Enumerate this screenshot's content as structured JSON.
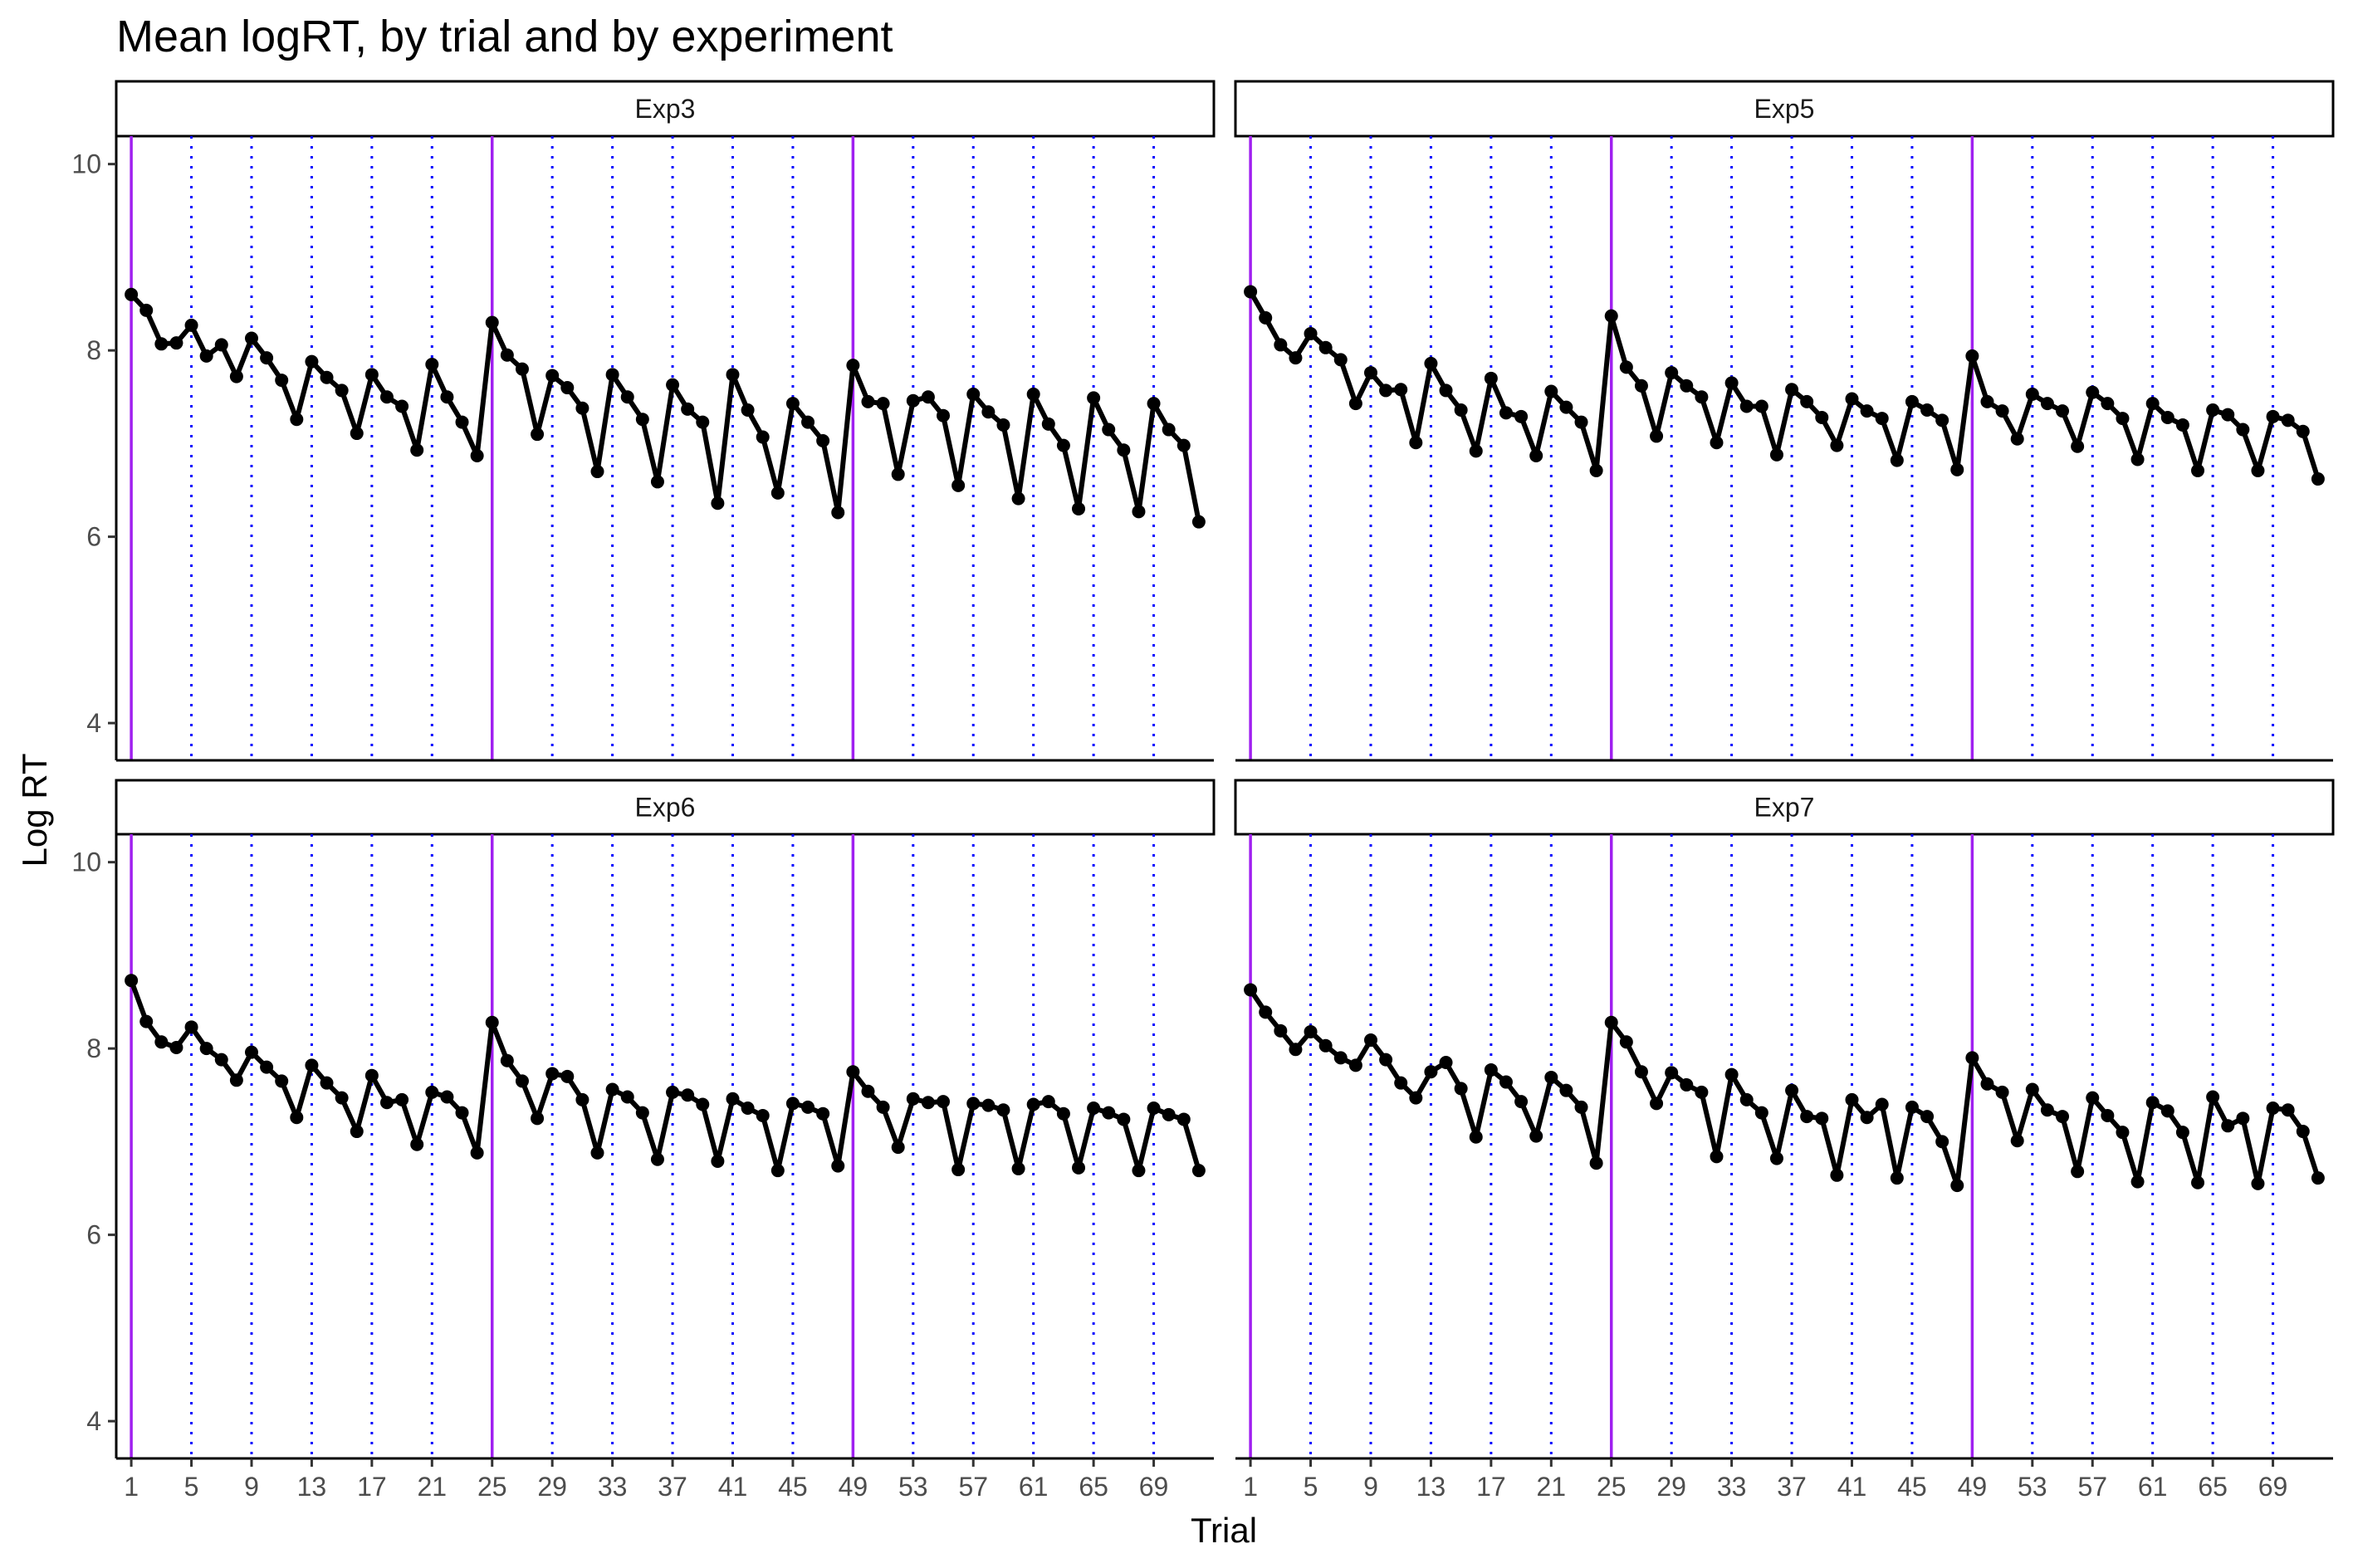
{
  "chart_data": {
    "type": "line",
    "title": "Mean logRT, by trial and by experiment",
    "xlabel": "Trial",
    "ylabel": "Log RT",
    "xlim": [
      0,
      73
    ],
    "ylim": [
      3.6,
      10.3
    ],
    "x_ticks": [
      1,
      5,
      9,
      13,
      17,
      21,
      25,
      29,
      33,
      37,
      41,
      45,
      49,
      53,
      57,
      61,
      65,
      69
    ],
    "y_ticks": [
      4,
      6,
      8,
      10
    ],
    "vlines_solid": [
      1,
      25,
      49
    ],
    "vlines_dotted": [
      5,
      9,
      13,
      17,
      21,
      29,
      33,
      37,
      41,
      45,
      53,
      57,
      61,
      65,
      69
    ],
    "colors": {
      "line": "#000000",
      "solid_vline": "#a020f0",
      "dotted_vline": "#0000ff",
      "axis": "#000000",
      "tick_text": "#4d4d4d"
    },
    "grid": false,
    "legend": "none",
    "x": [
      1,
      2,
      3,
      4,
      5,
      6,
      7,
      8,
      9,
      10,
      11,
      12,
      13,
      14,
      15,
      16,
      17,
      18,
      19,
      20,
      21,
      22,
      23,
      24,
      25,
      26,
      27,
      28,
      29,
      30,
      31,
      32,
      33,
      34,
      35,
      36,
      37,
      38,
      39,
      40,
      41,
      42,
      43,
      44,
      45,
      46,
      47,
      48,
      49,
      50,
      51,
      52,
      53,
      54,
      55,
      56,
      57,
      58,
      59,
      60,
      61,
      62,
      63,
      64,
      65,
      66,
      67,
      68,
      69,
      70,
      71,
      72
    ],
    "panels": [
      {
        "name": "Exp3",
        "values": [
          8.6,
          8.43,
          8.07,
          8.08,
          8.27,
          7.94,
          8.06,
          7.72,
          8.13,
          7.92,
          7.68,
          7.26,
          7.88,
          7.71,
          7.57,
          7.11,
          7.74,
          7.5,
          7.4,
          6.93,
          7.85,
          7.5,
          7.23,
          6.87,
          8.3,
          7.95,
          7.8,
          7.1,
          7.73,
          7.6,
          7.38,
          6.7,
          7.74,
          7.5,
          7.26,
          6.59,
          7.63,
          7.37,
          7.23,
          6.36,
          7.74,
          7.36,
          7.07,
          6.47,
          7.43,
          7.23,
          7.03,
          6.26,
          7.84,
          7.45,
          7.43,
          6.67,
          7.46,
          7.5,
          7.3,
          6.55,
          7.53,
          7.34,
          7.2,
          6.41,
          7.53,
          7.21,
          6.98,
          6.3,
          7.49,
          7.15,
          6.93,
          6.27,
          7.43,
          7.15,
          6.98,
          6.16
        ]
      },
      {
        "name": "Exp5",
        "values": [
          8.63,
          8.35,
          8.06,
          7.92,
          8.18,
          8.03,
          7.9,
          7.43,
          7.76,
          7.57,
          7.58,
          7.01,
          7.86,
          7.57,
          7.36,
          6.92,
          7.7,
          7.33,
          7.29,
          6.87,
          7.56,
          7.39,
          7.23,
          6.71,
          8.37,
          7.82,
          7.62,
          7.08,
          7.76,
          7.62,
          7.5,
          7.01,
          7.65,
          7.4,
          7.4,
          6.88,
          7.58,
          7.45,
          7.28,
          6.98,
          7.48,
          7.35,
          7.27,
          6.82,
          7.45,
          7.36,
          7.25,
          6.72,
          7.94,
          7.45,
          7.35,
          7.05,
          7.53,
          7.43,
          7.35,
          6.97,
          7.55,
          7.43,
          7.27,
          6.83,
          7.43,
          7.28,
          7.2,
          6.71,
          7.36,
          7.31,
          7.15,
          6.71,
          7.29,
          7.25,
          7.13,
          6.62
        ]
      },
      {
        "name": "Exp6",
        "values": [
          8.73,
          8.29,
          8.07,
          8.01,
          8.23,
          8.0,
          7.88,
          7.66,
          7.96,
          7.8,
          7.65,
          7.26,
          7.82,
          7.63,
          7.47,
          7.11,
          7.71,
          7.42,
          7.45,
          6.97,
          7.53,
          7.48,
          7.31,
          6.88,
          8.28,
          7.87,
          7.65,
          7.25,
          7.73,
          7.7,
          7.45,
          6.88,
          7.56,
          7.48,
          7.31,
          6.81,
          7.53,
          7.5,
          7.4,
          6.79,
          7.46,
          7.36,
          7.28,
          6.69,
          7.41,
          7.37,
          7.3,
          6.74,
          7.75,
          7.54,
          7.37,
          6.94,
          7.46,
          7.42,
          7.43,
          6.7,
          7.41,
          7.39,
          7.34,
          6.71,
          7.4,
          7.43,
          7.3,
          6.72,
          7.36,
          7.31,
          7.24,
          6.69,
          7.36,
          7.29,
          7.24,
          6.69
        ]
      },
      {
        "name": "Exp7",
        "values": [
          8.63,
          8.39,
          8.19,
          7.99,
          8.18,
          8.03,
          7.9,
          7.82,
          8.09,
          7.88,
          7.63,
          7.47,
          7.75,
          7.85,
          7.57,
          7.05,
          7.77,
          7.64,
          7.43,
          7.06,
          7.69,
          7.55,
          7.37,
          6.77,
          8.28,
          8.07,
          7.75,
          7.41,
          7.74,
          7.61,
          7.53,
          6.84,
          7.72,
          7.45,
          7.31,
          6.82,
          7.55,
          7.27,
          7.25,
          6.64,
          7.45,
          7.26,
          7.4,
          6.61,
          7.37,
          7.27,
          7.0,
          6.53,
          7.9,
          7.62,
          7.53,
          7.01,
          7.56,
          7.34,
          7.27,
          6.68,
          7.47,
          7.28,
          7.1,
          6.57,
          7.42,
          7.33,
          7.1,
          6.56,
          7.48,
          7.17,
          7.25,
          6.55,
          7.36,
          7.34,
          7.11,
          6.61
        ]
      }
    ]
  }
}
